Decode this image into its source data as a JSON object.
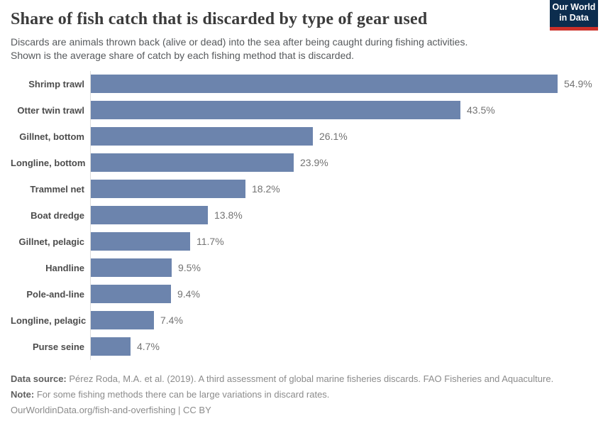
{
  "header": {
    "title": "Share of fish catch that is discarded by type of gear used",
    "subtitle_line1": "Discards are animals thrown back (alive or dead) into the sea after being caught during fishing activities.",
    "subtitle_line2": "Shown is the average share of catch by each fishing method that is discarded.",
    "logo": {
      "line1": "Our World",
      "line2": "in Data"
    }
  },
  "chart_data": {
    "type": "bar",
    "orientation": "horizontal",
    "title": "Share of fish catch that is discarded by type of gear used",
    "xlabel": "",
    "ylabel": "",
    "xlim": [
      0,
      55
    ],
    "grid": false,
    "legend": "none",
    "bar_color": "#6c84ad",
    "categories": [
      "Shrimp trawl",
      "Otter twin trawl",
      "Gillnet, bottom",
      "Longline, bottom",
      "Trammel net",
      "Boat dredge",
      "Gillnet, pelagic",
      "Handline",
      "Pole-and-line",
      "Longline, pelagic",
      "Purse seine"
    ],
    "values": [
      54.9,
      43.5,
      26.1,
      23.9,
      18.2,
      13.8,
      11.7,
      9.5,
      9.4,
      7.4,
      4.7
    ],
    "value_labels": [
      "54.9%",
      "43.5%",
      "26.1%",
      "23.9%",
      "18.2%",
      "13.8%",
      "11.7%",
      "9.5%",
      "9.4%",
      "7.4%",
      "4.7%"
    ]
  },
  "footer": {
    "datasource_label": "Data source:",
    "datasource_text": " Pérez Roda, M.A. et al. (2019). A third assessment of global marine fisheries discards. FAO Fisheries and Aquaculture.",
    "note_label": "Note:",
    "note_text": " For some fishing methods there can be large variations in discard rates.",
    "link_text": "OurWorldinData.org/fish-and-overfishing | CC BY"
  }
}
